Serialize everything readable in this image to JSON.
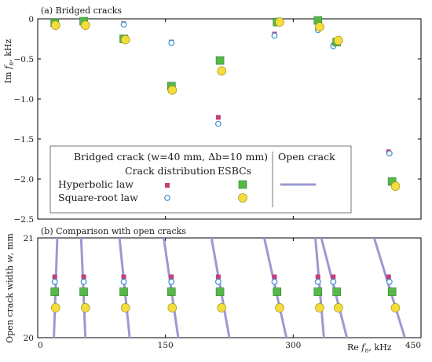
{
  "colors": {
    "hyperbolic": "#c2407a",
    "square_root": "#3d8fd1",
    "esbc_hyperbolic": "#56b847",
    "esbc_square_root": "#f2dd3c",
    "open_crack": "#9a9ad2",
    "axis": "#000000"
  },
  "chart_data": [
    {
      "type": "scatter",
      "panel_label": "(a) Bridged cracks",
      "ylabel": "Im f_n, kHz",
      "xlim": [
        0,
        450
      ],
      "ylim": [
        -2.5,
        0
      ],
      "grid": false,
      "xticks": [
        0,
        150,
        300,
        450
      ],
      "yticks": [
        {
          "value": 0,
          "label": "0"
        },
        {
          "value": -0.5,
          "label": "−0.5"
        },
        {
          "value": -1.0,
          "label": "−1.0"
        },
        {
          "value": -1.5,
          "label": "−1.5"
        },
        {
          "value": -2.0,
          "label": "−2.0"
        },
        {
          "value": -2.5,
          "label": "−2.5"
        }
      ],
      "legend": {
        "placement": "bottom-left",
        "bridged_title": "Bridged crack (w=40 mm, Δb=10 mm)",
        "crack_distribution_header": "Crack distribution",
        "esbc_header": "ESBCs",
        "open_crack_header": "Open crack",
        "row_hyperbolic": "Hyperbolic law",
        "row_square_root": "Square-root law"
      },
      "series": [
        {
          "key": "hyperbolic",
          "marker": "small-square",
          "points": [
            [
              20,
              -0.05
            ],
            [
              54,
              -0.02
            ],
            [
              101,
              -0.06
            ],
            [
              157,
              -0.29
            ],
            [
              212,
              -1.23
            ],
            [
              278,
              -0.19
            ],
            [
              329,
              -0.12
            ],
            [
              347,
              -0.33
            ],
            [
              412,
              -1.66
            ]
          ]
        },
        {
          "key": "square_root",
          "marker": "open-circle",
          "points": [
            [
              20,
              -0.06
            ],
            [
              54,
              -0.03
            ],
            [
              101,
              -0.07
            ],
            [
              157,
              -0.3
            ],
            [
              212,
              -1.31
            ],
            [
              278,
              -0.21
            ],
            [
              329,
              -0.14
            ],
            [
              347,
              -0.34
            ],
            [
              413,
              -1.68
            ]
          ]
        },
        {
          "key": "esbc_hyperbolic",
          "marker": "big-square",
          "points": [
            [
              20,
              -0.05
            ],
            [
              54,
              -0.03
            ],
            [
              101,
              -0.25
            ],
            [
              157,
              -0.84
            ],
            [
              214,
              -0.52
            ],
            [
              281,
              -0.04
            ],
            [
              329,
              -0.02
            ],
            [
              351,
              -0.29
            ],
            [
              416,
              -2.03
            ]
          ]
        },
        {
          "key": "esbc_square_root",
          "marker": "big-circle",
          "points": [
            [
              21,
              -0.08
            ],
            [
              56,
              -0.08
            ],
            [
              103,
              -0.26
            ],
            [
              158,
              -0.89
            ],
            [
              216,
              -0.65
            ],
            [
              284,
              -0.04
            ],
            [
              331,
              -0.1
            ],
            [
              353,
              -0.27
            ],
            [
              420,
              -2.09
            ]
          ]
        }
      ]
    },
    {
      "type": "line",
      "panel_label": "(b) Comparison with open cracks",
      "xlabel": "Re f_n, kHz",
      "ylabel": "Open crack width w, mm",
      "xlim": [
        0,
        450
      ],
      "ylim": [
        20,
        21
      ],
      "grid": false,
      "xticks": [
        0,
        150,
        300,
        450
      ],
      "yticks": [
        20,
        21
      ],
      "open_crack_lines": [
        {
          "x_at_20": 19,
          "x_at_21": 23
        },
        {
          "x_at_20": 56,
          "x_at_21": 51
        },
        {
          "x_at_20": 108,
          "x_at_21": 96
        },
        {
          "x_at_20": 165,
          "x_at_21": 148
        },
        {
          "x_at_20": 225,
          "x_at_21": 204
        },
        {
          "x_at_20": 292,
          "x_at_21": 266
        },
        {
          "x_at_20": 336,
          "x_at_21": 326
        },
        {
          "x_at_20": 363,
          "x_at_21": 333
        },
        {
          "x_at_20": 431,
          "x_at_21": 395
        }
      ],
      "markers_y": {
        "hyperbolic": 20.61,
        "square_root": 20.56,
        "esbc_hyperbolic": 20.46,
        "esbc_square_root": 20.3
      },
      "markers_x": {
        "hyperbolic": [
          20,
          54,
          101,
          157,
          212,
          278,
          329,
          347,
          412
        ],
        "square_root": [
          20,
          54,
          101,
          157,
          212,
          278,
          329,
          347,
          413
        ],
        "esbc_hyperbolic": [
          20,
          54,
          101,
          157,
          214,
          281,
          329,
          351,
          416
        ],
        "esbc_square_root": [
          21,
          56,
          103,
          158,
          216,
          284,
          331,
          353,
          420
        ]
      }
    }
  ]
}
